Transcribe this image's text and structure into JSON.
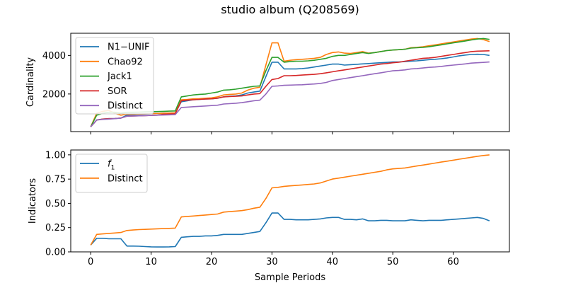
{
  "chart_data": {
    "type": "line",
    "title": "studio album (Q208569)",
    "xlabel": "Sample Periods",
    "x_ticks": [
      0,
      10,
      20,
      30,
      40,
      50,
      60
    ],
    "xlim": [
      -3.3,
      69.3
    ],
    "panels": [
      {
        "ylabel": "Cardinality",
        "ylim": [
          50,
          5150
        ],
        "y_ticks": [
          2000,
          4000
        ],
        "legend": "top-left",
        "series": [
          {
            "name": "N1−UNIF",
            "color": "#1f77b4",
            "values": [
              300,
              650,
              700,
              720,
              730,
              750,
              900,
              920,
              940,
              960,
              980,
              990,
              1000,
              1010,
              1020,
              1600,
              1650,
              1700,
              1720,
              1740,
              1750,
              1780,
              1850,
              1880,
              1900,
              1950,
              2050,
              2100,
              2150,
              2900,
              3650,
              3650,
              3300,
              3300,
              3300,
              3320,
              3350,
              3400,
              3450,
              3500,
              3550,
              3550,
              3500,
              3520,
              3540,
              3560,
              3580,
              3600,
              3620,
              3640,
              3660,
              3660,
              3680,
              3700,
              3720,
              3750,
              3780,
              3800,
              3830,
              3870,
              3920,
              3980,
              4020,
              4050,
              4060,
              4050,
              4000
            ]
          },
          {
            "name": "Chao92",
            "color": "#ff7f0e",
            "values": [
              300,
              1000,
              1100,
              1150,
              1000,
              900,
              950,
              950,
              960,
              970,
              980,
              990,
              1000,
              1010,
              1020,
              1700,
              1720,
              1750,
              1760,
              1780,
              1800,
              1850,
              1950,
              1980,
              2000,
              2050,
              2200,
              2300,
              2350,
              3500,
              4650,
              4650,
              3700,
              3750,
              3780,
              3800,
              3820,
              3850,
              3900,
              4050,
              4150,
              4180,
              4120,
              4100,
              4150,
              4200,
              4120,
              4150,
              4200,
              4250,
              4280,
              4300,
              4320,
              4400,
              4420,
              4450,
              4500,
              4550,
              4600,
              4650,
              4700,
              4750,
              4800,
              4850,
              4880,
              4820,
              4720
            ]
          },
          {
            "name": "Jack1",
            "color": "#2ca02c",
            "values": [
              300,
              900,
              1000,
              1050,
              1050,
              1000,
              1050,
              1050,
              1060,
              1070,
              1080,
              1090,
              1100,
              1110,
              1120,
              1850,
              1900,
              1950,
              1980,
              2000,
              2050,
              2100,
              2200,
              2220,
              2250,
              2300,
              2350,
              2400,
              2420,
              3200,
              3900,
              3900,
              3650,
              3680,
              3700,
              3700,
              3720,
              3750,
              3800,
              3850,
              3950,
              4000,
              4000,
              4050,
              4100,
              4150,
              4100,
              4150,
              4200,
              4250,
              4280,
              4300,
              4320,
              4380,
              4400,
              4420,
              4450,
              4500,
              4550,
              4600,
              4650,
              4700,
              4750,
              4800,
              4850,
              4880,
              4830
            ]
          },
          {
            "name": "SOR",
            "color": "#d62728",
            "values": [
              300,
              650,
              700,
              720,
              730,
              750,
              850,
              860,
              870,
              880,
              890,
              900,
              950,
              960,
              970,
              1650,
              1680,
              1700,
              1720,
              1740,
              1750,
              1780,
              1850,
              1870,
              1880,
              1900,
              1950,
              2000,
              2020,
              2400,
              2750,
              2800,
              2950,
              2950,
              2960,
              2980,
              3000,
              3020,
              3050,
              3100,
              3150,
              3200,
              3250,
              3300,
              3350,
              3400,
              3450,
              3500,
              3550,
              3580,
              3620,
              3650,
              3700,
              3750,
              3800,
              3850,
              3870,
              3900,
              3950,
              4000,
              4050,
              4100,
              4150,
              4200,
              4220,
              4230,
              4240
            ]
          },
          {
            "name": "Distinct",
            "color": "#9467bd",
            "values": [
              300,
              650,
              680,
              700,
              720,
              750,
              850,
              860,
              870,
              880,
              890,
              900,
              910,
              920,
              930,
              1300,
              1320,
              1340,
              1360,
              1380,
              1400,
              1420,
              1480,
              1500,
              1520,
              1550,
              1600,
              1650,
              1680,
              2000,
              2400,
              2420,
              2450,
              2460,
              2470,
              2480,
              2500,
              2520,
              2550,
              2600,
              2700,
              2750,
              2800,
              2850,
              2900,
              2950,
              3000,
              3050,
              3100,
              3150,
              3200,
              3220,
              3250,
              3300,
              3320,
              3350,
              3380,
              3400,
              3430,
              3470,
              3500,
              3530,
              3560,
              3600,
              3620,
              3640,
              3660
            ]
          }
        ]
      },
      {
        "ylabel": "Indicators",
        "ylim": [
          0,
          1.05
        ],
        "y_ticks": [
          0.0,
          0.25,
          0.5,
          0.75,
          1.0
        ],
        "y_tick_labels": [
          "0.00",
          "0.25",
          "0.50",
          "0.75",
          "1.00"
        ],
        "legend": "top-left",
        "series": [
          {
            "name": "f",
            "name_subscript": "1",
            "color": "#1f77b4",
            "values": [
              0.07,
              0.14,
              0.14,
              0.135,
              0.135,
              0.135,
              0.06,
              0.06,
              0.058,
              0.055,
              0.052,
              0.05,
              0.05,
              0.052,
              0.055,
              0.15,
              0.155,
              0.16,
              0.16,
              0.165,
              0.165,
              0.17,
              0.18,
              0.18,
              0.18,
              0.18,
              0.19,
              0.2,
              0.21,
              0.3,
              0.4,
              0.4,
              0.335,
              0.335,
              0.33,
              0.33,
              0.33,
              0.335,
              0.34,
              0.35,
              0.355,
              0.355,
              0.335,
              0.335,
              0.33,
              0.34,
              0.32,
              0.32,
              0.325,
              0.325,
              0.32,
              0.32,
              0.32,
              0.33,
              0.325,
              0.32,
              0.325,
              0.325,
              0.325,
              0.33,
              0.335,
              0.34,
              0.345,
              0.35,
              0.355,
              0.345,
              0.32
            ]
          },
          {
            "name": "Distinct",
            "color": "#ff7f0e",
            "values": [
              0.07,
              0.18,
              0.185,
              0.19,
              0.195,
              0.2,
              0.22,
              0.225,
              0.23,
              0.232,
              0.235,
              0.238,
              0.24,
              0.242,
              0.245,
              0.36,
              0.365,
              0.37,
              0.375,
              0.38,
              0.385,
              0.39,
              0.41,
              0.415,
              0.42,
              0.425,
              0.435,
              0.45,
              0.46,
              0.55,
              0.66,
              0.665,
              0.675,
              0.68,
              0.685,
              0.69,
              0.695,
              0.7,
              0.71,
              0.73,
              0.75,
              0.76,
              0.77,
              0.78,
              0.79,
              0.8,
              0.81,
              0.82,
              0.83,
              0.845,
              0.855,
              0.86,
              0.865,
              0.875,
              0.885,
              0.895,
              0.905,
              0.915,
              0.925,
              0.935,
              0.945,
              0.955,
              0.965,
              0.975,
              0.985,
              0.993,
              1.0
            ]
          }
        ]
      }
    ]
  }
}
